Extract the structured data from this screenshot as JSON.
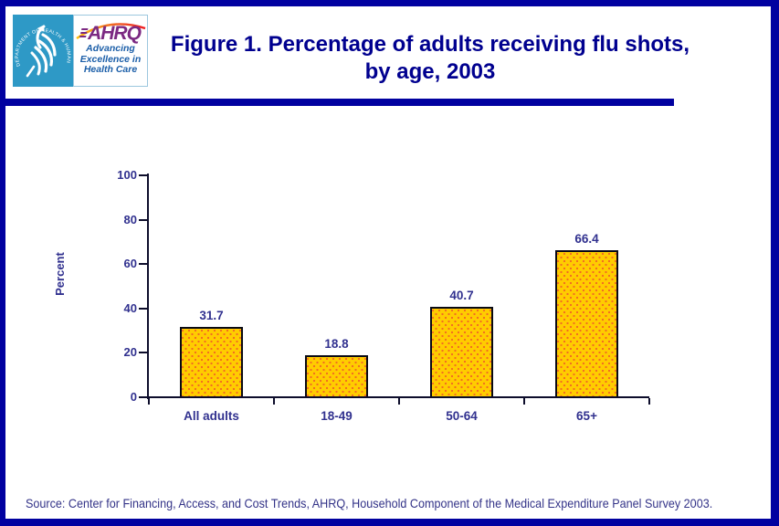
{
  "colors": {
    "page_border_navy": "#0101A0",
    "title_navy": "#00008F",
    "chart_text_navy": "#31318F",
    "axis_color": "#0D0D2B",
    "bar_fill": "#FFCC00",
    "bar_dot": "#F26C22",
    "bar_border": "#0A0A14",
    "hhs_teal": "#2E99C6",
    "ahrq_purple": "#7B2982",
    "tagline_blue": "#1B5EA8",
    "arc_gradient_start": "#FFC20E",
    "arc_gradient_end": "#ED1C24",
    "source_text": "#333388"
  },
  "header": {
    "logo": {
      "hhs_seal_text": "DEPARTMENT OF HEALTH & HUMAN SERVICES · USA",
      "ahrq_acronym": "AHRQ",
      "tagline_line1": "Advancing",
      "tagline_line2": "Excellence in",
      "tagline_line3": "Health Care"
    },
    "title_line1": "Figure 1. Percentage of adults receiving flu shots,",
    "title_line2": "by age, 2003"
  },
  "chart_data": {
    "type": "bar",
    "title": "Figure 1. Percentage of adults receiving flu shots, by age, 2003",
    "categories": [
      "All adults",
      "18-49",
      "50-64",
      "65+"
    ],
    "values": [
      31.7,
      18.8,
      40.7,
      66.4
    ],
    "value_labels": [
      "31.7",
      "18.8",
      "40.7",
      "66.4"
    ],
    "xlabel": "",
    "ylabel": "Percent",
    "ylim": [
      0,
      100
    ],
    "yticks": [
      0,
      20,
      40,
      60,
      80,
      100
    ],
    "grid": false,
    "legend": false
  },
  "footer": {
    "source": "Source: Center for Financing, Access, and Cost Trends, AHRQ, Household Component of the Medical Expenditure Panel Survey 2003."
  }
}
